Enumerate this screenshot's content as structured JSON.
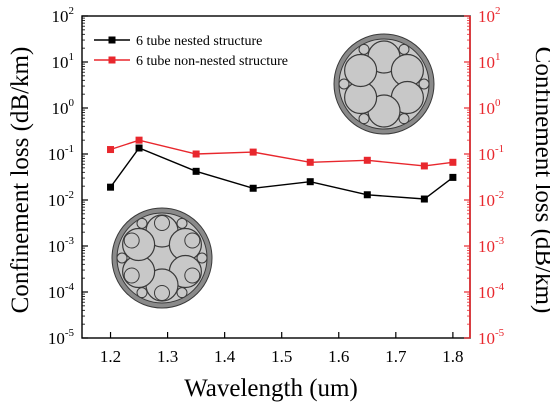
{
  "chart_data": {
    "type": "line",
    "xlabel": "Wavelength (um)",
    "ylabel_left": "Confinement loss (dB/km)",
    "ylabel_right": "Confinement loss (dB/km)",
    "xlim": [
      1.15,
      1.83
    ],
    "ylim_log10": [
      -5,
      2
    ],
    "y_scale": "log",
    "x_ticks": [
      "1.2",
      "1.3",
      "1.4",
      "1.5",
      "1.6",
      "1.7",
      "1.8"
    ],
    "y_tick_exponents": [
      2,
      1,
      0,
      -1,
      -2,
      -3,
      -4,
      -5
    ],
    "legend_position": "top-left",
    "grid": false,
    "series": [
      {
        "name": "6 tube nested structure",
        "color": "#000000",
        "marker": "square",
        "x": [
          1.2,
          1.25,
          1.35,
          1.45,
          1.55,
          1.65,
          1.75,
          1.8
        ],
        "y": [
          0.019,
          0.135,
          0.042,
          0.018,
          0.025,
          0.013,
          0.0105,
          0.031
        ]
      },
      {
        "name": "6 tube non-nested structure",
        "color": "#e8272d",
        "marker": "square",
        "x": [
          1.2,
          1.25,
          1.35,
          1.45,
          1.55,
          1.65,
          1.75,
          1.8
        ],
        "y": [
          0.125,
          0.2,
          0.1,
          0.11,
          0.066,
          0.073,
          0.055,
          0.066
        ]
      }
    ],
    "insets": [
      {
        "name": "non-nested-fiber-cross-section",
        "tubes": 6,
        "nested": false
      },
      {
        "name": "nested-fiber-cross-section",
        "tubes": 6,
        "nested": true
      }
    ]
  },
  "colors": {
    "axis": "#000000",
    "right_axis": "#e8272d",
    "fiber_fill": "#c8c8c8",
    "fiber_ring": "#8a8a8a",
    "fiber_line": "#3a3a3a"
  }
}
